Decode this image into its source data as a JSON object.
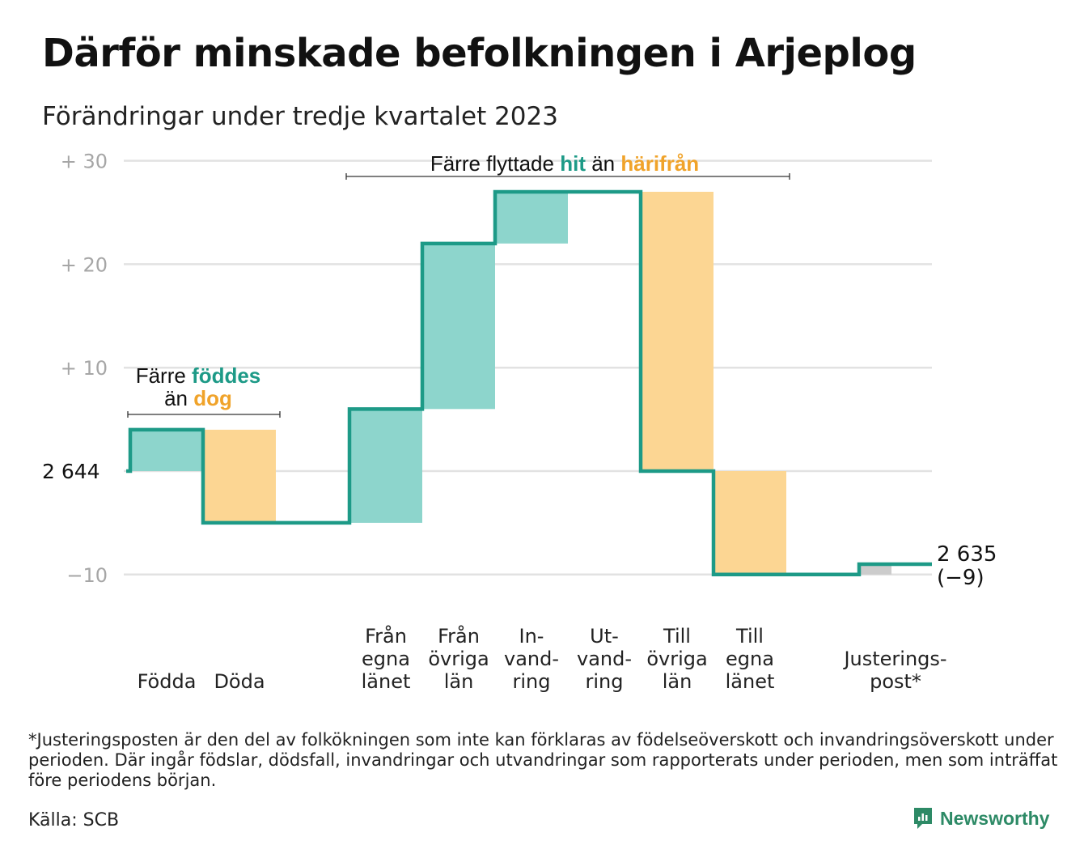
{
  "title": "Därför minskade befolkningen i Arjeplog",
  "subtitle": "Förändringar under tredje kvartalet 2023",
  "footnote": "*Justeringsposten är den del av folkökningen som inte kan förklaras av födelseöverskott och invandringsöverskott under perioden. Där ingår födslar, dödsfall, invandringar och utvandringar som rapporterats under perioden, men som inträffat före periodens början.",
  "source": "Källa: SCB",
  "brand": "Newsworthy",
  "colors": {
    "increase": "#8dd5cc",
    "decrease": "#fcd693",
    "adjustment": "#cccccc",
    "line": "#1d9a87",
    "grid": "#e2e2e2",
    "teal_text": "#1d9a87",
    "orange_text": "#f0a32a",
    "brand": "#2d8a66"
  },
  "annotations": {
    "births_deaths": {
      "line1": "Färre",
      "line1_highlight": "föddes",
      "line2": "än",
      "line2_highlight": "dog"
    },
    "migration": {
      "part1": "Färre flyttade",
      "highlight1": "hit",
      "part2": "än",
      "highlight2": "härifrån"
    }
  },
  "chart_data": {
    "type": "waterfall",
    "start_value": 2644,
    "start_label": "2 644",
    "end_label": "2 635",
    "end_change_label": "(−9)",
    "y_ticks": [
      {
        "value": 30,
        "label": "+  30"
      },
      {
        "value": 20,
        "label": "+  20"
      },
      {
        "value": 10,
        "label": "+  10"
      },
      {
        "value": -10,
        "label": "−10"
      }
    ],
    "ylim": [
      -10,
      30
    ],
    "steps": [
      {
        "label": [
          "Födda"
        ],
        "value": 4
      },
      {
        "label": [
          "Döda"
        ],
        "value": -9
      },
      {
        "label": [
          "Från",
          "egna",
          "länet"
        ],
        "value": 11
      },
      {
        "label": [
          "Från",
          "övriga",
          "län"
        ],
        "value": 16
      },
      {
        "label": [
          "In-",
          "vand-",
          "ring"
        ],
        "value": 5
      },
      {
        "label": [
          "Ut-",
          "vand-",
          "ring"
        ],
        "value": 0
      },
      {
        "label": [
          "Till",
          "övriga",
          "län"
        ],
        "value": -27
      },
      {
        "label": [
          "Till",
          "egna",
          "länet"
        ],
        "value": -10
      },
      {
        "label": [
          "Justerings-",
          "post*"
        ],
        "value": 1
      }
    ]
  }
}
